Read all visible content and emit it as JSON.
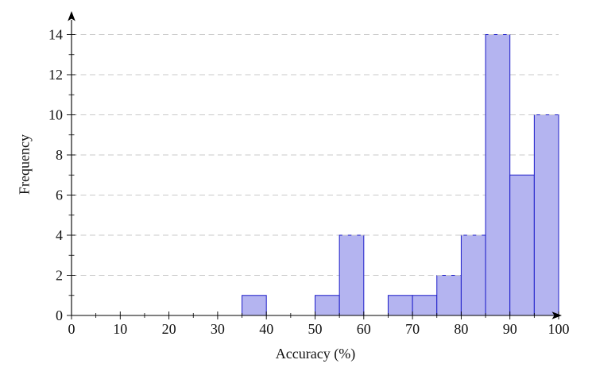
{
  "chart_data": {
    "type": "histogram",
    "title": "",
    "xlabel": "Accuracy (%)",
    "ylabel": "Frequency",
    "xlim": [
      0,
      100
    ],
    "ylim": [
      0,
      15
    ],
    "x_major_ticks": [
      0,
      10,
      20,
      30,
      40,
      50,
      60,
      70,
      80,
      90,
      100
    ],
    "x_minor_ticks": [
      5,
      15,
      25,
      35,
      45,
      55,
      65,
      75,
      85,
      95
    ],
    "y_major_ticks": [
      0,
      2,
      4,
      6,
      8,
      10,
      12,
      14
    ],
    "y_minor_ticks": [
      1,
      3,
      5,
      7,
      9,
      11,
      13
    ],
    "grid": {
      "horizontal_major": true,
      "vertical": false,
      "style": "dashed"
    },
    "legend": null,
    "bins": [
      {
        "start": 35,
        "end": 40,
        "count": 1
      },
      {
        "start": 50,
        "end": 55,
        "count": 1
      },
      {
        "start": 55,
        "end": 60,
        "count": 4
      },
      {
        "start": 65,
        "end": 70,
        "count": 1
      },
      {
        "start": 70,
        "end": 75,
        "count": 1
      },
      {
        "start": 75,
        "end": 80,
        "count": 2
      },
      {
        "start": 80,
        "end": 85,
        "count": 4
      },
      {
        "start": 85,
        "end": 90,
        "count": 14
      },
      {
        "start": 90,
        "end": 95,
        "count": 7
      },
      {
        "start": 95,
        "end": 100,
        "count": 10
      }
    ],
    "colors": {
      "bar_fill": "#b4b4f0",
      "bar_stroke": "#1c1cc8",
      "grid": "#c9c9c9",
      "axis": "#000000",
      "text": "#111111",
      "background": "#ffffff"
    }
  }
}
